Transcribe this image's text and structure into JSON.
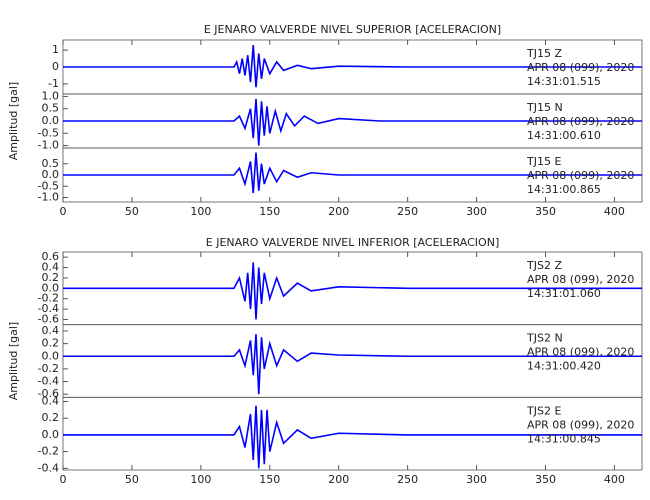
{
  "chart_data": [
    {
      "type": "line",
      "title": "E JENARO VALVERDE NIVEL SUPERIOR [ACELERACION]",
      "y_label": "Amplitud [gal]",
      "xlim": [
        0,
        420
      ],
      "xticks": [
        0,
        50,
        100,
        150,
        200,
        250,
        300,
        350,
        400
      ],
      "color": "#0000ff",
      "series": [
        {
          "name": "TJ15  Z",
          "date": "APR 08 (099), 2020",
          "time": "14:31:01.515",
          "ylim": [
            -1.6,
            1.6
          ],
          "yticks": [
            -1,
            0,
            1
          ],
          "x": [
            0,
            60,
            124,
            126,
            128,
            130,
            132,
            134,
            136,
            138,
            140,
            142,
            144,
            146,
            150,
            155,
            160,
            170,
            180,
            200,
            250,
            300,
            420
          ],
          "values": [
            0,
            0,
            0,
            0.3,
            -0.4,
            0.5,
            -0.5,
            0.7,
            -0.9,
            1.3,
            -1.2,
            0.8,
            -0.7,
            0.5,
            -0.4,
            0.3,
            -0.2,
            0.1,
            -0.1,
            0.05,
            0,
            0,
            0
          ]
        },
        {
          "name": "TJ15  N",
          "date": "APR 08 (099), 2020",
          "time": "14:31:00.610",
          "ylim": [
            -1.1,
            1.1
          ],
          "yticks": [
            {
              "value": -1,
              "label": "-1.0"
            },
            -0.5,
            {
              "value": 0,
              "label": "0.0"
            },
            0.5,
            {
              "value": 1,
              "label": "1.0"
            }
          ],
          "x": [
            0,
            60,
            124,
            128,
            132,
            136,
            138,
            140,
            142,
            144,
            146,
            148,
            150,
            154,
            158,
            162,
            168,
            175,
            185,
            200,
            230,
            300,
            420
          ],
          "values": [
            0,
            0,
            0,
            0.2,
            -0.3,
            0.5,
            -0.7,
            0.9,
            -1.0,
            0.8,
            -0.6,
            0.6,
            -0.5,
            0.4,
            -0.4,
            0.3,
            -0.2,
            0.2,
            -0.1,
            0.1,
            0,
            0,
            0
          ]
        },
        {
          "name": "TJ15  E",
          "date": "APR 08 (099), 2020",
          "time": "14:31:00.865",
          "ylim": [
            -1.2,
            1.2
          ],
          "yticks": [
            {
              "value": -1,
              "label": "-1.0"
            },
            -0.5,
            {
              "value": 0,
              "label": "0.0"
            },
            0.5
          ],
          "x": [
            0,
            60,
            124,
            128,
            132,
            136,
            138,
            140,
            142,
            144,
            146,
            150,
            155,
            160,
            170,
            180,
            200,
            250,
            420
          ],
          "values": [
            0,
            0,
            0,
            0.3,
            -0.4,
            0.6,
            -0.8,
            1.0,
            -0.7,
            0.5,
            -0.4,
            0.3,
            -0.3,
            0.2,
            -0.1,
            0.1,
            0,
            0,
            0
          ]
        }
      ]
    },
    {
      "type": "line",
      "title": "E JENARO VALVERDE NIVEL INFERIOR [ACELERACION]",
      "y_label": "Amplitud [gal]",
      "xlim": [
        0,
        420
      ],
      "xticks": [
        0,
        50,
        100,
        150,
        200,
        250,
        300,
        350,
        400
      ],
      "color": "#0000ff",
      "series": [
        {
          "name": "TJS2  Z",
          "date": "APR 08 (099), 2020",
          "time": "14:31:01.060",
          "ylim": [
            -0.7,
            0.7
          ],
          "yticks": [
            -0.6,
            -0.4,
            -0.2,
            {
              "value": 0,
              "label": "0.0"
            },
            0.2,
            0.4,
            0.6
          ],
          "x": [
            0,
            60,
            124,
            128,
            132,
            134,
            136,
            138,
            140,
            142,
            144,
            146,
            150,
            155,
            160,
            170,
            180,
            200,
            250,
            420
          ],
          "values": [
            0,
            0,
            0,
            0.2,
            -0.25,
            0.3,
            -0.4,
            0.5,
            -0.6,
            0.4,
            -0.3,
            0.3,
            -0.2,
            0.2,
            -0.15,
            0.1,
            -0.05,
            0.03,
            0,
            0
          ]
        },
        {
          "name": "TJS2  N",
          "date": "APR 08 (099), 2020",
          "time": "14:31:00.420",
          "ylim": [
            -0.65,
            0.5
          ],
          "yticks": [
            -0.6,
            -0.4,
            -0.2,
            {
              "value": 0,
              "label": "0.0"
            },
            0.2,
            0.4
          ],
          "x": [
            0,
            60,
            124,
            128,
            132,
            136,
            138,
            140,
            142,
            144,
            146,
            150,
            155,
            160,
            170,
            180,
            200,
            250,
            420
          ],
          "values": [
            0,
            0,
            0,
            0.1,
            -0.15,
            0.25,
            -0.3,
            0.35,
            -0.6,
            0.3,
            -0.2,
            0.2,
            -0.15,
            0.1,
            -0.08,
            0.05,
            0.02,
            0,
            0
          ]
        },
        {
          "name": "TJS2  E",
          "date": "APR 08 (099), 2020",
          "time": "14:31:00.845",
          "ylim": [
            -0.42,
            0.45
          ],
          "yticks": [
            -0.4,
            -0.2,
            {
              "value": 0,
              "label": "0.0"
            },
            0.2,
            0.4
          ],
          "x": [
            0,
            60,
            124,
            128,
            132,
            136,
            138,
            140,
            142,
            144,
            146,
            148,
            150,
            155,
            160,
            170,
            180,
            200,
            250,
            420
          ],
          "values": [
            0,
            0,
            0,
            0.1,
            -0.15,
            0.25,
            -0.3,
            0.35,
            -0.4,
            0.3,
            -0.35,
            0.3,
            -0.2,
            0.15,
            -0.1,
            0.06,
            -0.04,
            0.02,
            0,
            0
          ]
        }
      ]
    }
  ]
}
